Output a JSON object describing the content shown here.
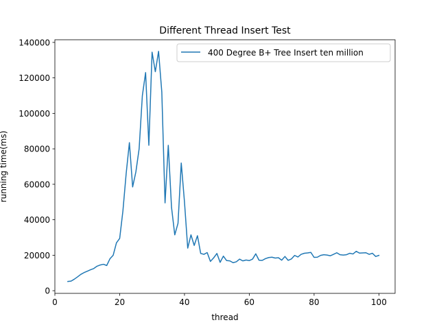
{
  "chart_data": {
    "type": "line",
    "title": "Different Thread Insert Test",
    "xlabel": "thread",
    "ylabel": "running time(ms)",
    "xlim": [
      0,
      105
    ],
    "ylim": [
      -1500,
      141500
    ],
    "xticks": [
      0,
      20,
      40,
      60,
      80,
      100
    ],
    "yticks": [
      0,
      20000,
      40000,
      60000,
      80000,
      100000,
      120000,
      140000
    ],
    "grid": false,
    "legend_position": "top-right",
    "series": [
      {
        "name": "400 Degree B+ Tree Insert ten million",
        "color": "#1f77b4",
        "x": [
          4,
          5,
          6,
          7,
          8,
          9,
          10,
          11,
          12,
          13,
          14,
          15,
          16,
          17,
          18,
          19,
          20,
          21,
          22,
          23,
          24,
          25,
          26,
          27,
          28,
          29,
          30,
          31,
          32,
          33,
          34,
          35,
          36,
          37,
          38,
          39,
          40,
          41,
          42,
          43,
          44,
          45,
          46,
          47,
          48,
          49,
          50,
          51,
          52,
          53,
          54,
          55,
          56,
          57,
          58,
          59,
          60,
          61,
          62,
          63,
          64,
          65,
          66,
          67,
          68,
          69,
          70,
          71,
          72,
          73,
          74,
          75,
          76,
          77,
          78,
          79,
          80,
          81,
          82,
          83,
          84,
          85,
          86,
          87,
          88,
          89,
          90,
          91,
          92,
          93,
          94,
          95,
          96,
          97,
          98,
          99,
          100
        ],
        "y": [
          5200,
          5400,
          6500,
          7800,
          9200,
          10200,
          11000,
          11800,
          12500,
          13800,
          14500,
          14900,
          14200,
          18000,
          20000,
          27000,
          29500,
          45000,
          66000,
          83500,
          58500,
          67000,
          80000,
          110000,
          123000,
          82000,
          134500,
          123500,
          135000,
          112000,
          49500,
          82000,
          47000,
          31500,
          38000,
          72000,
          50000,
          24000,
          31500,
          25500,
          31000,
          21000,
          20500,
          21500,
          16500,
          18500,
          21000,
          16000,
          19500,
          17000,
          16800,
          15800,
          16300,
          17800,
          16800,
          17300,
          17000,
          17800,
          20800,
          17200,
          17100,
          18100,
          18700,
          18900,
          18400,
          18600,
          17200,
          19300,
          17100,
          17900,
          19900,
          19000,
          20500,
          21100,
          21300,
          21600,
          18800,
          18900,
          19900,
          20300,
          20100,
          19700,
          20500,
          21400,
          20300,
          20100,
          20300,
          21100,
          20700,
          22200,
          21200,
          21300,
          21400,
          20500,
          21100,
          19300,
          19900
        ]
      }
    ]
  }
}
